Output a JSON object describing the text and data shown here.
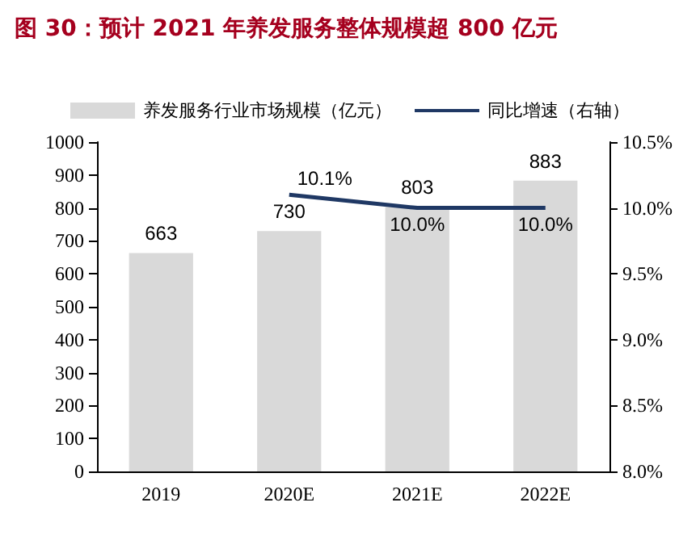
{
  "chart_data": {
    "type": "bar",
    "title": "图 30：预计 2021 年养发服务整体规模超 800 亿元",
    "categories": [
      "2019",
      "2020E",
      "2021E",
      "2022E"
    ],
    "series": [
      {
        "name": "养发服务行业市场规模（亿元）",
        "color": "#d9d9d9",
        "values": [
          663,
          730,
          803,
          883
        ]
      },
      {
        "name": "同比增速（右轴）",
        "type": "line",
        "axis": "y2",
        "color": "#1f3864",
        "values": [
          null,
          10.1,
          10.0,
          10.0
        ],
        "value_labels": [
          null,
          "10.1%",
          "10.0%",
          "10.0%"
        ]
      }
    ],
    "data_labels": true,
    "legend": "top",
    "grid": false,
    "marker": "none",
    "ylim": [
      0,
      1000
    ],
    "yticks": [
      0,
      100,
      200,
      300,
      400,
      500,
      600,
      700,
      800,
      900,
      1000
    ],
    "y2lim": [
      8,
      10.5
    ],
    "y2ticks": [
      {
        "value": 8,
        "label": "8.0%"
      },
      {
        "value": 8.5,
        "label": "8.5%"
      },
      {
        "value": 9,
        "label": "9.0%"
      },
      {
        "value": 9.5,
        "label": "9.5%"
      },
      {
        "value": 10,
        "label": "10.0%"
      },
      {
        "value": 10.5,
        "label": "10.5%"
      }
    ]
  }
}
